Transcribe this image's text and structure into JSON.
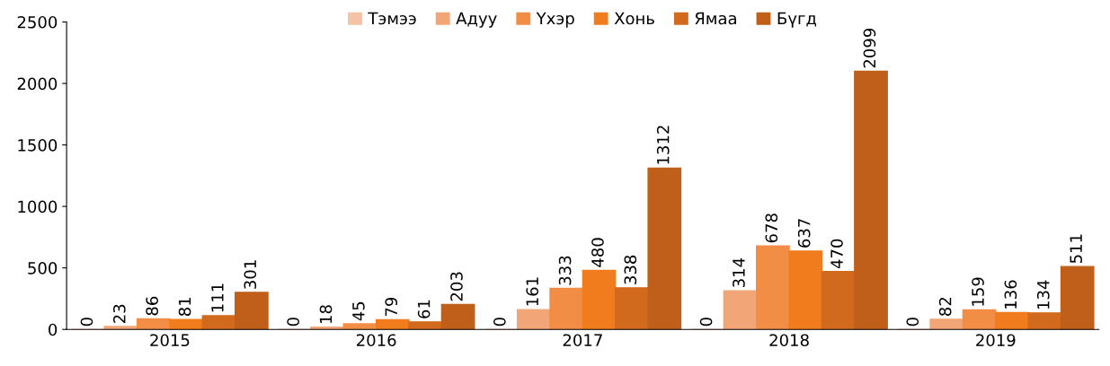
{
  "chart_data": {
    "type": "bar",
    "categories": [
      "2015",
      "2016",
      "2017",
      "2018",
      "2019"
    ],
    "series": [
      {
        "name": "Тэмээ",
        "color": "#f4c2a6",
        "values": [
          0,
          0,
          0,
          0,
          0
        ]
      },
      {
        "name": "Адуу",
        "color": "#f2a576",
        "values": [
          23,
          18,
          161,
          314,
          82
        ]
      },
      {
        "name": "Үхэр",
        "color": "#f28d45",
        "values": [
          86,
          45,
          333,
          678,
          159
        ]
      },
      {
        "name": "Хонь",
        "color": "#f07c1e",
        "values": [
          81,
          79,
          480,
          637,
          136
        ]
      },
      {
        "name": "Ямаа",
        "color": "#d26a1e",
        "values": [
          111,
          61,
          338,
          470,
          134
        ]
      },
      {
        "name": "Бүгд",
        "color": "#bf5f1a",
        "values": [
          301,
          203,
          1312,
          2099,
          511
        ]
      }
    ],
    "ylim": [
      0,
      2500
    ],
    "yticks": [
      0,
      500,
      1000,
      1500,
      2000,
      2500
    ],
    "data_labels": true,
    "legend": "top",
    "grid": false
  }
}
